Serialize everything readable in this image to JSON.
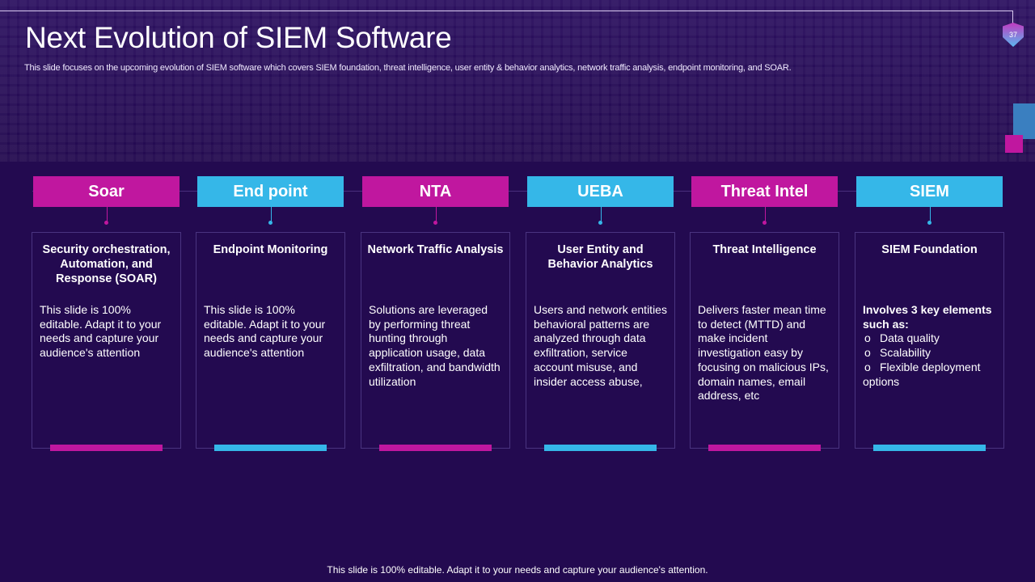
{
  "slide": {
    "title": "Next Evolution of SIEM Software",
    "page_number": "37",
    "subtitle": "This slide focuses on the upcoming evolution of SIEM software which covers SIEM foundation, threat intelligence, user entity & behavior analytics, network traffic analysis, endpoint monitoring, and SOAR.",
    "footer": "This slide is 100% editable. Adapt it to your needs and capture your audience's attention."
  },
  "colors": {
    "magenta": "#c0179f",
    "cyan": "#35b7e8",
    "background": "#230a50"
  },
  "columns": [
    {
      "header": "Soar",
      "title": "Security orchestration, Automation, and Response (SOAR)",
      "body": "This slide is 100% editable. Adapt it to your needs and capture your audience's attention",
      "accent": "magenta"
    },
    {
      "header": "End point",
      "title": "Endpoint Monitoring",
      "body": "This slide is 100% editable. Adapt it to your needs and capture your audience's attention",
      "accent": "cyan"
    },
    {
      "header": "NTA",
      "title": "Network Traffic Analysis",
      "body": "Solutions are leveraged by performing threat hunting through application usage, data exfiltration, and bandwidth utilization",
      "accent": "magenta"
    },
    {
      "header": "UEBA",
      "title": "User Entity and Behavior Analytics",
      "body": "Users and network entities behavioral patterns are analyzed through data exfiltration, service account misuse, and insider access abuse,",
      "accent": "cyan"
    },
    {
      "header": "Threat Intel",
      "title": "Threat Intelligence",
      "body": "Delivers faster mean time to detect (MTTD) and make incident investigation easy by focusing on malicious IPs, domain names, email address, etc",
      "accent": "magenta"
    },
    {
      "header": "SIEM",
      "title": "SIEM Foundation",
      "body_intro": "Involves 3 key elements such as:",
      "bullets": [
        "Data quality",
        "Scalability",
        "Flexible deployment options"
      ],
      "accent": "cyan"
    }
  ]
}
